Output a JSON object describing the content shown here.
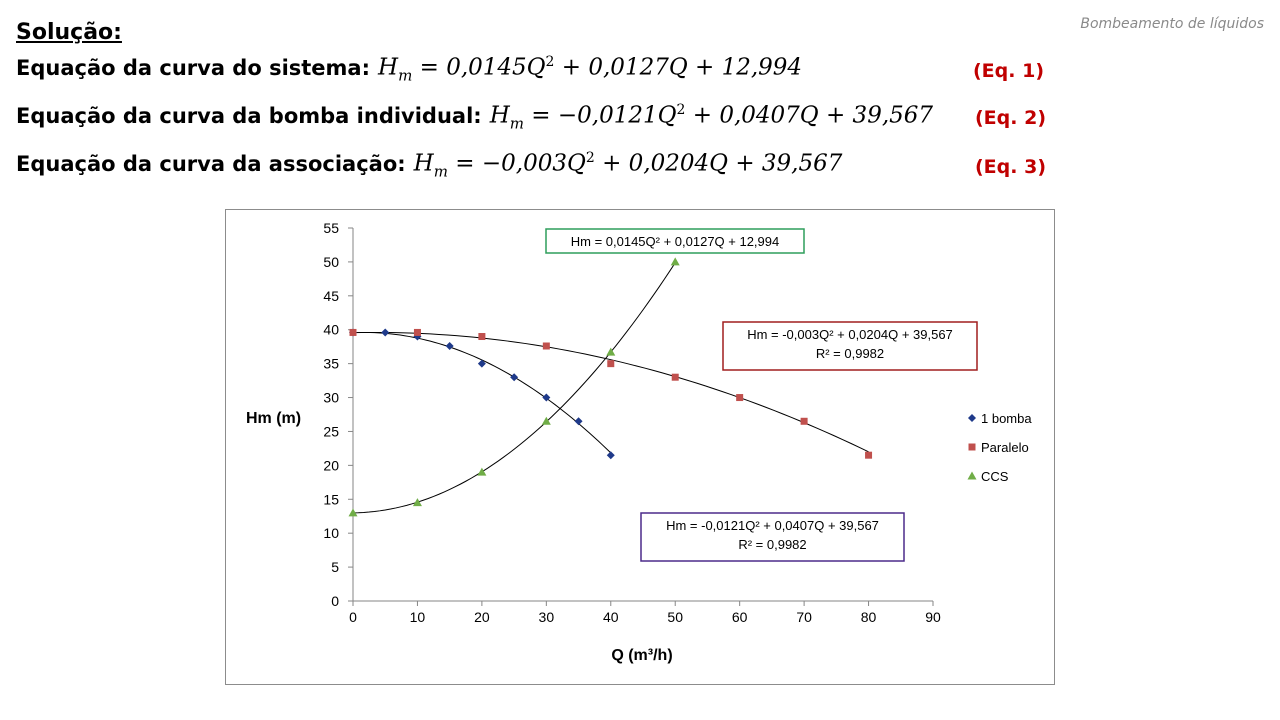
{
  "header": {
    "note": "Bombeamento de líquidos"
  },
  "solution": {
    "title": "Solução:",
    "equations": [
      {
        "label": "Equação da curva do sistema:",
        "lhs_base": "H",
        "lhs_sub": "m",
        "a": "0,0145Q",
        "a_exp": "2",
        "rest": " + 0,0127Q + 12,994",
        "sign": "",
        "tag": "(Eq. 1)"
      },
      {
        "label": "Equação da curva da bomba individual:",
        "lhs_base": "H",
        "lhs_sub": "m",
        "a": "0,0121Q",
        "a_exp": "2",
        "rest": " + 0,0407Q + 39,567",
        "sign": "−",
        "tag": "(Eq. 2)"
      },
      {
        "label": "Equação da curva da associação:",
        "lhs_base": "H",
        "lhs_sub": "m",
        "a": "0,003Q",
        "a_exp": "2",
        "rest": " + 0,0204Q + 39,567",
        "sign": "−",
        "tag": "(Eq. 3)"
      }
    ]
  },
  "chart_data": {
    "type": "scatter",
    "title": "",
    "xlabel": "Q (m³/h)",
    "ylabel": "Hm (m)",
    "xlim": [
      0,
      90
    ],
    "ylim": [
      0,
      55
    ],
    "x_ticks": [
      0,
      10,
      20,
      30,
      40,
      50,
      60,
      70,
      80,
      90
    ],
    "y_ticks": [
      0,
      5,
      10,
      15,
      20,
      25,
      30,
      35,
      40,
      45,
      50,
      55
    ],
    "grid": false,
    "legend_position": "right",
    "series": [
      {
        "name": "1 bomba",
        "marker": "diamond",
        "color": "#1f3a8a",
        "x": [
          0,
          5,
          10,
          15,
          20,
          25,
          30,
          35,
          40
        ],
        "y": [
          39.6,
          39.6,
          39,
          37.6,
          35,
          33,
          30,
          26.5,
          21.5
        ],
        "trendline": {
          "a": -0.0121,
          "b": 0.0407,
          "c": 39.567,
          "x_range": [
            0,
            40
          ]
        }
      },
      {
        "name": "Paralelo",
        "marker": "square",
        "color": "#c0504d",
        "x": [
          0,
          10,
          20,
          30,
          40,
          50,
          60,
          70,
          80
        ],
        "y": [
          39.6,
          39.6,
          39,
          37.6,
          35,
          33,
          30,
          26.5,
          21.5
        ],
        "trendline": {
          "a": -0.003,
          "b": 0.0204,
          "c": 39.567,
          "x_range": [
            0,
            80
          ]
        }
      },
      {
        "name": "CCS",
        "marker": "triangle",
        "color": "#70ad47",
        "x": [
          0,
          10,
          20,
          30,
          40,
          50
        ],
        "y": [
          13,
          14.5,
          19,
          26.5,
          36.7,
          50
        ],
        "trendline": {
          "a": 0.0145,
          "b": 0.0127,
          "c": 12.994,
          "x_range": [
            0,
            50
          ]
        }
      }
    ],
    "annotations": [
      {
        "id": "ccs",
        "lines": [
          "Hm = 0,0145Q² + 0,0127Q + 12,994"
        ],
        "border": "#2e9e5b"
      },
      {
        "id": "paralelo",
        "lines": [
          "Hm = -0,003Q² + 0,0204Q + 39,567",
          "R² = 0,9982"
        ],
        "border": "#a01e1e"
      },
      {
        "id": "bomba",
        "lines": [
          "Hm = -0,0121Q² + 0,0407Q + 39,567",
          "R² = 0,9982"
        ],
        "border": "#4b2a8a"
      }
    ]
  }
}
